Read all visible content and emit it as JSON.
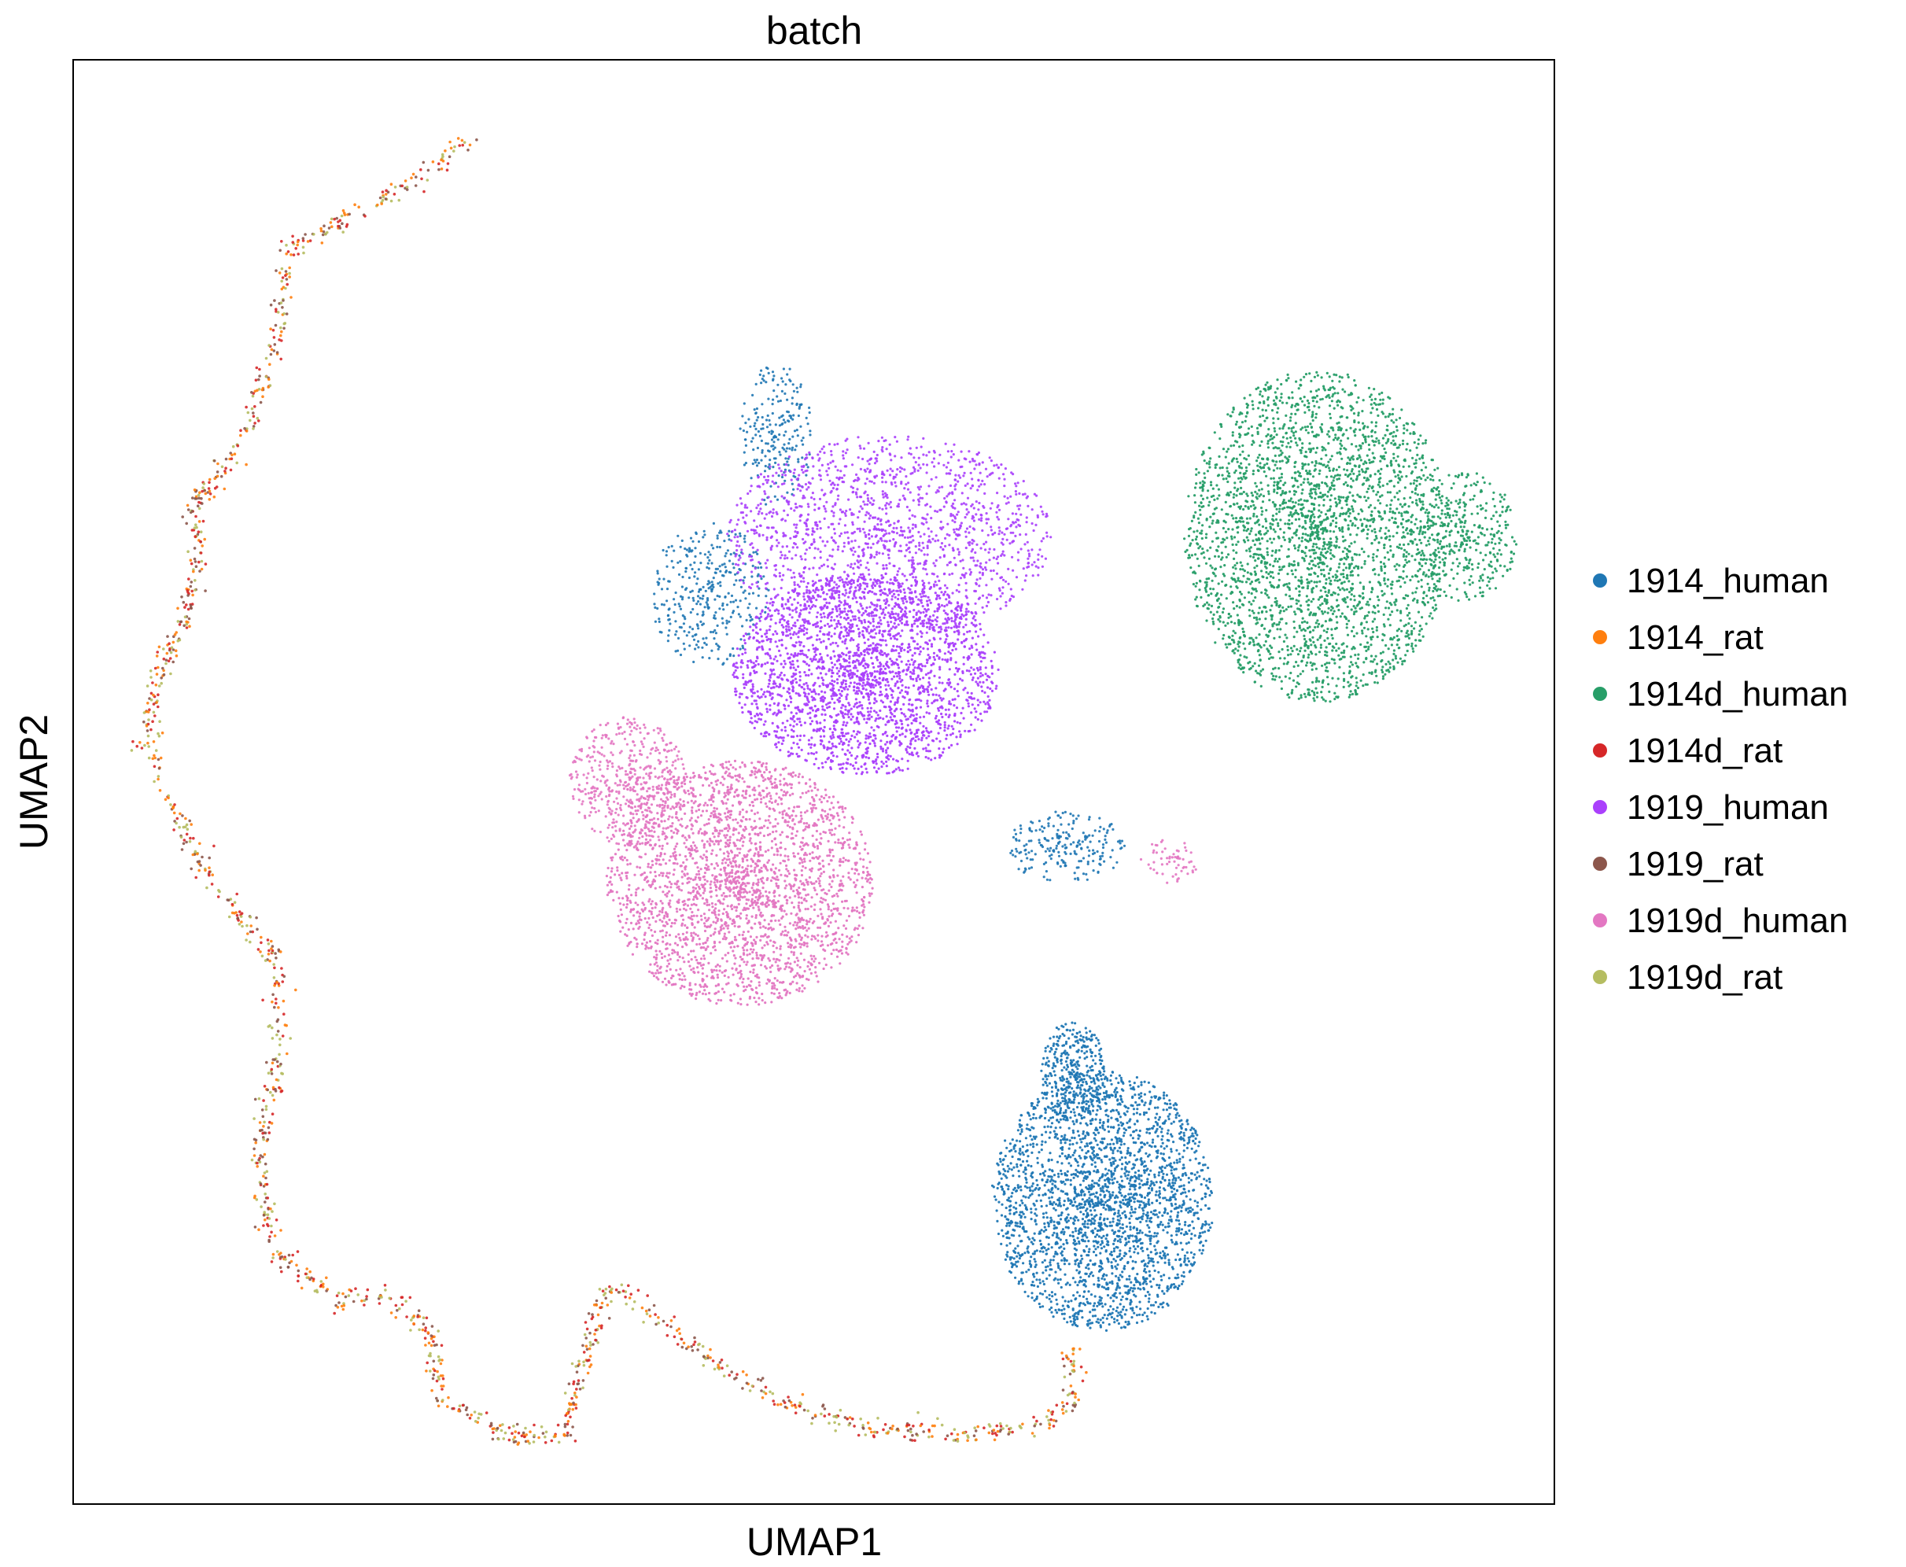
{
  "chart_data": {
    "type": "scatter",
    "title": "batch",
    "xlabel": "UMAP1",
    "ylabel": "UMAP2",
    "xlim": [
      0,
      100
    ],
    "ylim": [
      0,
      100
    ],
    "ticks": "none",
    "grid": false,
    "legend_position": "right",
    "legend": [
      {
        "name": "1914_human",
        "color": "#1f77b4"
      },
      {
        "name": "1914_rat",
        "color": "#ff7f0e"
      },
      {
        "name": "1914d_human",
        "color": "#279e68"
      },
      {
        "name": "1914d_rat",
        "color": "#d62728"
      },
      {
        "name": "1919_human",
        "color": "#aa40fc"
      },
      {
        "name": "1919_rat",
        "color": "#8c564b"
      },
      {
        "name": "1919d_human",
        "color": "#e377c2"
      },
      {
        "name": "1919d_rat",
        "color": "#b5bd61"
      }
    ],
    "clusters": [
      {
        "name": "1914_human",
        "color": "#1f77b4",
        "regions": [
          {
            "cx": 69.5,
            "cy": 21.0,
            "rx": 7.5,
            "ry": 9.0,
            "n": 2600,
            "opacity": 0.95
          },
          {
            "cx": 67.5,
            "cy": 30.0,
            "rx": 2.2,
            "ry": 3.5,
            "n": 350,
            "opacity": 0.95
          },
          {
            "cx": 43.0,
            "cy": 63.0,
            "rx": 4.0,
            "ry": 5.0,
            "n": 350,
            "opacity": 0.9
          },
          {
            "cx": 47.5,
            "cy": 74.0,
            "rx": 2.5,
            "ry": 5.0,
            "n": 220,
            "opacity": 0.9
          },
          {
            "cx": 67.0,
            "cy": 45.5,
            "rx": 4.0,
            "ry": 2.5,
            "n": 220,
            "opacity": 0.9
          }
        ]
      },
      {
        "name": "1914d_human",
        "color": "#279e68",
        "regions": [
          {
            "cx": 84.0,
            "cy": 67.0,
            "rx": 9.0,
            "ry": 11.5,
            "n": 3000,
            "opacity": 0.95
          },
          {
            "cx": 94.0,
            "cy": 67.0,
            "rx": 3.5,
            "ry": 4.5,
            "n": 350,
            "opacity": 0.95
          }
        ]
      },
      {
        "name": "1919_human",
        "color": "#aa40fc",
        "regions": [
          {
            "cx": 53.5,
            "cy": 57.5,
            "rx": 9.0,
            "ry": 7.0,
            "n": 2400,
            "opacity": 0.95
          },
          {
            "cx": 55.0,
            "cy": 67.0,
            "rx": 11.0,
            "ry": 7.0,
            "n": 1600,
            "opacity": 0.9
          }
        ]
      },
      {
        "name": "1919d_human",
        "color": "#e377c2",
        "regions": [
          {
            "cx": 45.0,
            "cy": 43.0,
            "rx": 9.0,
            "ry": 8.5,
            "n": 2600,
            "opacity": 0.95
          },
          {
            "cx": 37.5,
            "cy": 50.0,
            "rx": 4.0,
            "ry": 4.5,
            "n": 500,
            "opacity": 0.9
          },
          {
            "cx": 74.0,
            "cy": 44.5,
            "rx": 2.0,
            "ry": 1.5,
            "n": 60,
            "opacity": 0.9
          }
        ]
      }
    ],
    "trajectory": {
      "colors": [
        "#8c564b",
        "#d62728",
        "#ff7f0e",
        "#b5bd61"
      ],
      "n": 1400,
      "path": [
        [
          27.0,
          95.0
        ],
        [
          24.5,
          92.5
        ],
        [
          20.5,
          90.0
        ],
        [
          14.5,
          87.0
        ],
        [
          14.0,
          82.0
        ],
        [
          13.0,
          78.0
        ],
        [
          11.5,
          73.5
        ],
        [
          8.0,
          69.0
        ],
        [
          8.5,
          65.0
        ],
        [
          7.5,
          61.0
        ],
        [
          5.5,
          57.0
        ],
        [
          5.0,
          52.5
        ],
        [
          7.0,
          47.5
        ],
        [
          9.5,
          43.0
        ],
        [
          13.5,
          38.0
        ],
        [
          14.0,
          32.0
        ],
        [
          12.5,
          24.0
        ],
        [
          13.5,
          17.5
        ],
        [
          18.0,
          14.0
        ],
        [
          21.5,
          14.5
        ],
        [
          24.0,
          12.0
        ],
        [
          25.0,
          7.0
        ],
        [
          29.0,
          5.0
        ],
        [
          33.0,
          4.5
        ],
        [
          36.0,
          15.0
        ],
        [
          37.5,
          14.5
        ],
        [
          43.0,
          10.0
        ],
        [
          48.0,
          7.0
        ],
        [
          55.0,
          5.0
        ],
        [
          62.0,
          5.0
        ],
        [
          66.5,
          6.0
        ],
        [
          67.5,
          7.5
        ],
        [
          67.5,
          11.0
        ]
      ]
    }
  }
}
